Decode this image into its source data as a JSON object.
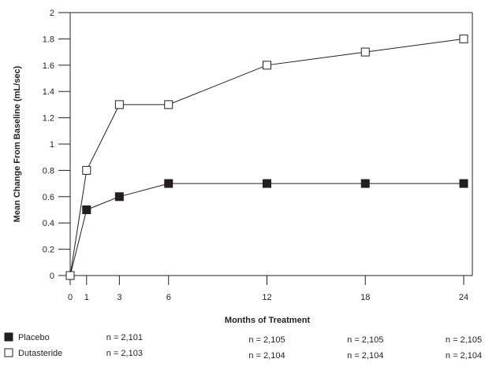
{
  "chart_data": {
    "type": "line",
    "title": "",
    "xlabel": "Months of Treatment",
    "ylabel": "Mean Change From Baseline (mL/sec)",
    "x": [
      0,
      1,
      3,
      6,
      12,
      18,
      24
    ],
    "xticks": [
      "0",
      "1",
      "3",
      "6",
      "12",
      "18",
      "24"
    ],
    "yticks": [
      "0",
      "0.2",
      "0.4",
      "0.6",
      "0.8",
      "1",
      "1.2",
      "1.4",
      "1.6",
      "1.8",
      "2"
    ],
    "xlim": [
      0,
      24
    ],
    "ylim": [
      0,
      2
    ],
    "grid": false,
    "series": [
      {
        "name": "Placebo",
        "marker": "filled-square",
        "values": [
          0,
          0.5,
          0.6,
          0.7,
          0.7,
          0.7,
          0.7
        ]
      },
      {
        "name": "Dutasteride",
        "marker": "open-square",
        "values": [
          0,
          0.8,
          1.3,
          1.3,
          1.6,
          1.7,
          1.8
        ]
      }
    ],
    "legend_placement": "bottom-left",
    "n_table": [
      {
        "series": "Placebo",
        "counts": [
          "n = 2,101",
          "n = 2,105",
          "n = 2,105",
          "n = 2,105"
        ]
      },
      {
        "series": "Dutasteride",
        "counts": [
          "n = 2,103",
          "n = 2,104",
          "n = 2,104",
          "n = 2,104"
        ]
      }
    ]
  }
}
